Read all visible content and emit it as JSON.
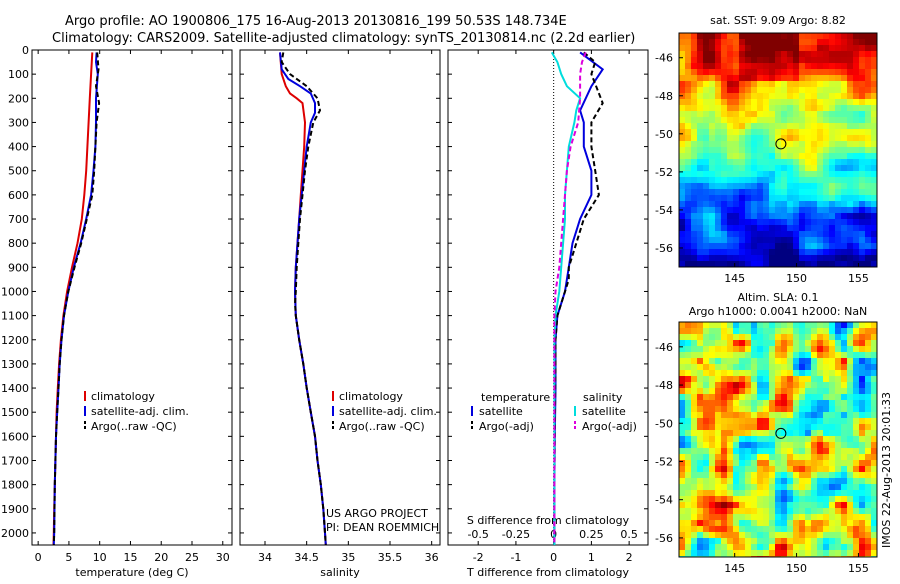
{
  "header": {
    "line1": "Argo profile: AO 1900806_175 16-Aug-2013 20130816_199 50.53S 148.734E",
    "line2": "Climatology: CARS2009. Satellite-adjusted climatology: synTS_20130814.nc (2.2d earlier)"
  },
  "credit": {
    "line1": "US ARGO PROJECT",
    "line2": "PI: DEAN ROEMMICH"
  },
  "stamp": "IMOS 22-Aug-2013 20:01:33",
  "colors": {
    "climatology": "#dd0000",
    "satellite": "#0000dd",
    "argo": "#000000",
    "salinity_satellite": "#00dddd",
    "salinity_argo": "#dd00dd"
  },
  "chart_data": [
    {
      "type": "line",
      "xlabel": "temperature (deg C)",
      "xlim": [
        -1,
        31.5
      ],
      "xticks": [
        0,
        5,
        10,
        15,
        20,
        25,
        30
      ],
      "ylim": [
        2050,
        0
      ],
      "yticks": [
        0,
        100,
        200,
        300,
        400,
        500,
        600,
        700,
        800,
        900,
        1000,
        1100,
        1200,
        1300,
        1400,
        1500,
        1600,
        1700,
        1800,
        1900,
        2000
      ],
      "legend": [
        "climatology",
        "satellite-adj. clim.",
        "Argo(..raw -QC)"
      ],
      "series": [
        {
          "name": "climatology",
          "color": "#dd0000",
          "dash": "",
          "points": [
            [
              8.8,
              10
            ],
            [
              8.6,
              100
            ],
            [
              8.4,
              200
            ],
            [
              8.2,
              300
            ],
            [
              8.0,
              400
            ],
            [
              7.8,
              500
            ],
            [
              7.5,
              600
            ],
            [
              7.1,
              700
            ],
            [
              6.4,
              800
            ],
            [
              5.5,
              900
            ],
            [
              4.7,
              1000
            ],
            [
              4.1,
              1100
            ],
            [
              3.7,
              1200
            ],
            [
              3.4,
              1300
            ],
            [
              3.2,
              1400
            ],
            [
              3.0,
              1500
            ],
            [
              2.9,
              1600
            ],
            [
              2.8,
              1700
            ],
            [
              2.7,
              1800
            ],
            [
              2.6,
              1900
            ],
            [
              2.55,
              2000
            ],
            [
              2.5,
              2050
            ]
          ]
        },
        {
          "name": "satellite-adj. clim.",
          "color": "#0000dd",
          "dash": "",
          "points": [
            [
              9.5,
              10
            ],
            [
              9.4,
              50
            ],
            [
              9.7,
              100
            ],
            [
              9.4,
              200
            ],
            [
              9.4,
              300
            ],
            [
              9.3,
              400
            ],
            [
              9.0,
              500
            ],
            [
              8.6,
              600
            ],
            [
              7.8,
              700
            ],
            [
              6.9,
              800
            ],
            [
              5.8,
              900
            ],
            [
              4.9,
              1000
            ],
            [
              4.2,
              1100
            ],
            [
              3.8,
              1200
            ],
            [
              3.5,
              1300
            ],
            [
              3.3,
              1400
            ],
            [
              3.1,
              1500
            ],
            [
              2.9,
              1600
            ],
            [
              2.8,
              1700
            ],
            [
              2.7,
              1800
            ],
            [
              2.65,
              1900
            ],
            [
              2.6,
              2000
            ],
            [
              2.55,
              2050
            ]
          ]
        },
        {
          "name": "Argo(..raw -QC)",
          "color": "#000000",
          "dash": "5,3",
          "points": [
            [
              9.6,
              10
            ],
            [
              9.8,
              80
            ],
            [
              9.4,
              150
            ],
            [
              9.9,
              220
            ],
            [
              9.5,
              300
            ],
            [
              9.3,
              400
            ],
            [
              9.1,
              500
            ],
            [
              8.8,
              600
            ],
            [
              7.9,
              700
            ],
            [
              7.0,
              800
            ],
            [
              5.9,
              900
            ],
            [
              4.9,
              1000
            ],
            [
              4.2,
              1100
            ],
            [
              3.8,
              1200
            ],
            [
              3.5,
              1300
            ],
            [
              3.3,
              1400
            ],
            [
              3.1,
              1500
            ],
            [
              2.9,
              1600
            ],
            [
              2.8,
              1700
            ],
            [
              2.7,
              1800
            ],
            [
              2.65,
              1900
            ],
            [
              2.6,
              2000
            ],
            [
              2.55,
              2050
            ]
          ]
        }
      ]
    },
    {
      "type": "line",
      "xlabel": "salinity",
      "xlim": [
        33.7,
        36.1
      ],
      "xticks": [
        34,
        34.5,
        35,
        35.5,
        36
      ],
      "ylim": [
        2050,
        0
      ],
      "legend": [
        "climatology",
        "satellite-adj. clim.",
        "Argo(..raw -QC)"
      ],
      "series": [
        {
          "name": "climatology",
          "color": "#dd0000",
          "dash": "",
          "points": [
            [
              34.18,
              10
            ],
            [
              34.2,
              100
            ],
            [
              34.25,
              150
            ],
            [
              34.3,
              180
            ],
            [
              34.38,
              200
            ],
            [
              34.45,
              220
            ],
            [
              34.48,
              300
            ],
            [
              34.47,
              400
            ],
            [
              34.45,
              500
            ],
            [
              34.43,
              600
            ],
            [
              34.41,
              700
            ],
            [
              34.39,
              800
            ],
            [
              34.37,
              900
            ],
            [
              34.36,
              1000
            ],
            [
              34.37,
              1100
            ],
            [
              34.41,
              1200
            ],
            [
              34.46,
              1300
            ],
            [
              34.5,
              1400
            ],
            [
              34.55,
              1500
            ],
            [
              34.6,
              1600
            ],
            [
              34.63,
              1700
            ],
            [
              34.67,
              1800
            ],
            [
              34.7,
              1900
            ],
            [
              34.72,
              2000
            ],
            [
              34.73,
              2050
            ]
          ]
        },
        {
          "name": "satellite-adj. clim.",
          "color": "#0000dd",
          "dash": "",
          "points": [
            [
              34.18,
              10
            ],
            [
              34.2,
              80
            ],
            [
              34.28,
              120
            ],
            [
              34.42,
              150
            ],
            [
              34.55,
              180
            ],
            [
              34.6,
              220
            ],
            [
              34.6,
              260
            ],
            [
              34.55,
              300
            ],
            [
              34.5,
              400
            ],
            [
              34.47,
              500
            ],
            [
              34.44,
              600
            ],
            [
              34.41,
              700
            ],
            [
              34.39,
              800
            ],
            [
              34.37,
              900
            ],
            [
              34.36,
              1000
            ],
            [
              34.37,
              1100
            ],
            [
              34.41,
              1200
            ],
            [
              34.46,
              1300
            ],
            [
              34.5,
              1400
            ],
            [
              34.55,
              1500
            ],
            [
              34.6,
              1600
            ],
            [
              34.63,
              1700
            ],
            [
              34.67,
              1800
            ],
            [
              34.7,
              1900
            ],
            [
              34.72,
              2000
            ],
            [
              34.73,
              2050
            ]
          ]
        },
        {
          "name": "Argo(..raw -QC)",
          "color": "#000000",
          "dash": "5,3",
          "points": [
            [
              34.22,
              10
            ],
            [
              34.2,
              50
            ],
            [
              34.3,
              100
            ],
            [
              34.5,
              150
            ],
            [
              34.63,
              200
            ],
            [
              34.66,
              250
            ],
            [
              34.58,
              300
            ],
            [
              34.52,
              400
            ],
            [
              34.48,
              500
            ],
            [
              34.45,
              600
            ],
            [
              34.42,
              700
            ],
            [
              34.4,
              800
            ],
            [
              34.38,
              900
            ],
            [
              34.37,
              1000
            ],
            [
              34.36,
              1050
            ],
            [
              34.37,
              1100
            ],
            [
              34.41,
              1200
            ],
            [
              34.46,
              1300
            ],
            [
              34.5,
              1400
            ],
            [
              34.55,
              1500
            ],
            [
              34.6,
              1600
            ],
            [
              34.63,
              1700
            ],
            [
              34.67,
              1800
            ],
            [
              34.7,
              1900
            ],
            [
              34.72,
              2000
            ],
            [
              34.73,
              2050
            ]
          ]
        }
      ]
    },
    {
      "type": "line",
      "xlabel": "T difference from climatology",
      "xlabel2": "S difference from climatology",
      "xlim": [
        -2.8,
        2.5
      ],
      "xticks": [
        -2,
        -1,
        0,
        1,
        2
      ],
      "xticks_s": [
        -0.5,
        -0.25,
        0,
        0.25,
        0.5
      ],
      "ylim": [
        2050,
        0
      ],
      "legend": {
        "temperature_title": "temperature",
        "salinity_title": "salinity",
        "t_satellite": "satellite",
        "t_argo": "Argo(-adj)",
        "s_satellite": "satellite",
        "s_argo": "Argo(-adj)"
      },
      "series": [
        {
          "name": "T satellite",
          "color": "#0000dd",
          "dash": "",
          "points": [
            [
              0.7,
              10
            ],
            [
              1.3,
              80
            ],
            [
              1.0,
              150
            ],
            [
              0.7,
              250
            ],
            [
              0.8,
              300
            ],
            [
              0.8,
              400
            ],
            [
              1.0,
              500
            ],
            [
              1.0,
              600
            ],
            [
              0.7,
              700
            ],
            [
              0.5,
              800
            ],
            [
              0.4,
              900
            ],
            [
              0.3,
              1000
            ],
            [
              0.1,
              1100
            ],
            [
              0.05,
              1200
            ],
            [
              0.05,
              1300
            ],
            [
              0.05,
              1400
            ],
            [
              0.03,
              1600
            ],
            [
              0.02,
              1800
            ],
            [
              0.02,
              2000
            ],
            [
              0.02,
              2050
            ]
          ]
        },
        {
          "name": "T Argo(-adj)",
          "color": "#000000",
          "dash": "5,3",
          "points": [
            [
              0.8,
              10
            ],
            [
              1.1,
              50
            ],
            [
              1.0,
              100
            ],
            [
              1.3,
              220
            ],
            [
              1.0,
              300
            ],
            [
              1.0,
              400
            ],
            [
              1.1,
              500
            ],
            [
              1.2,
              600
            ],
            [
              0.8,
              700
            ],
            [
              0.6,
              800
            ],
            [
              0.4,
              900
            ],
            [
              0.4,
              950
            ],
            [
              0.1,
              1100
            ],
            [
              0.05,
              1200
            ],
            [
              0.05,
              1300
            ],
            [
              0.04,
              1400
            ],
            [
              0.03,
              1600
            ],
            [
              0.02,
              1800
            ],
            [
              0.02,
              2000
            ],
            [
              0.02,
              2050
            ]
          ]
        },
        {
          "name": "S satellite",
          "color": "#00dddd",
          "dash": "",
          "points": [
            [
              -0.05,
              10
            ],
            [
              0.1,
              50
            ],
            [
              0.2,
              100
            ],
            [
              0.35,
              150
            ],
            [
              0.7,
              200
            ],
            [
              0.6,
              250
            ],
            [
              0.55,
              300
            ],
            [
              0.4,
              400
            ],
            [
              0.35,
              500
            ],
            [
              0.3,
              600
            ],
            [
              0.3,
              700
            ],
            [
              0.25,
              800
            ],
            [
              0.2,
              900
            ],
            [
              0.15,
              1000
            ],
            [
              0.05,
              1100
            ],
            [
              0.02,
              1200
            ],
            [
              0.02,
              1400
            ],
            [
              0.02,
              1600
            ],
            [
              0.02,
              1800
            ],
            [
              0.02,
              2000
            ],
            [
              0.02,
              2050
            ]
          ]
        },
        {
          "name": "S Argo(-adj)",
          "color": "#dd00dd",
          "dash": "5,3",
          "points": [
            [
              0.85,
              10
            ],
            [
              0.75,
              50
            ],
            [
              0.7,
              100
            ],
            [
              0.7,
              200
            ],
            [
              0.65,
              300
            ],
            [
              0.45,
              400
            ],
            [
              0.35,
              500
            ],
            [
              0.3,
              600
            ],
            [
              0.25,
              700
            ],
            [
              0.2,
              800
            ],
            [
              0.15,
              900
            ],
            [
              0.05,
              1000
            ],
            [
              0.02,
              1100
            ],
            [
              0.02,
              1200
            ],
            [
              0.02,
              1400
            ],
            [
              0.02,
              1600
            ],
            [
              0.02,
              1800
            ],
            [
              0.02,
              2000
            ],
            [
              0.02,
              2050
            ]
          ]
        }
      ]
    },
    {
      "type": "heatmap",
      "title": "sat. SST: 9.09 Argo: 8.82",
      "xticks": [
        145,
        150,
        155
      ],
      "yticks": [
        -46,
        -48,
        -50,
        -52,
        -54,
        -56
      ],
      "xlim": [
        140.5,
        156.5
      ],
      "ylim": [
        -57,
        -44.7
      ],
      "marker": [
        148.734,
        -50.53
      ]
    },
    {
      "type": "heatmap",
      "title": "Altim. SLA: 0.1",
      "subtitle": "Argo h1000: 0.0041 h2000: NaN",
      "xticks": [
        145,
        150,
        155
      ],
      "yticks": [
        -46,
        -48,
        -50,
        -52,
        -54,
        -56
      ],
      "xlim": [
        140.5,
        156.5
      ],
      "ylim": [
        -57,
        -44.7
      ],
      "marker": [
        148.734,
        -50.53
      ]
    }
  ]
}
